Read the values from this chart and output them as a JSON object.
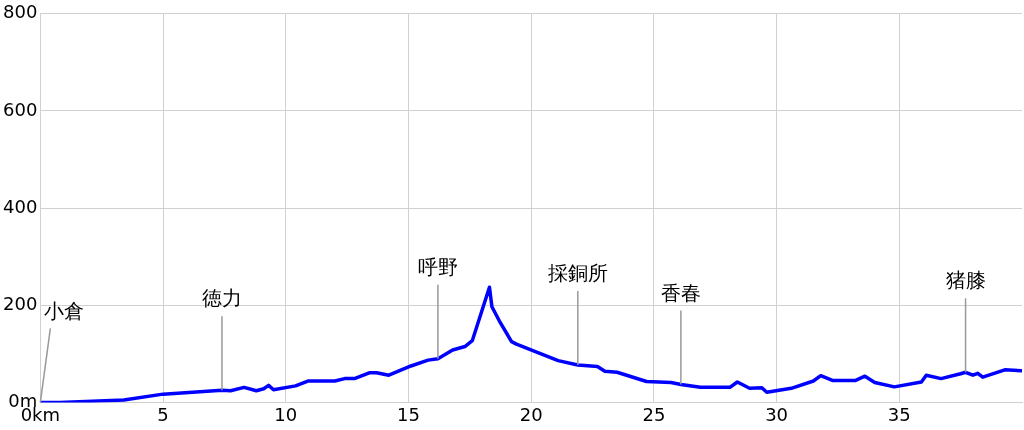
{
  "chart_data": {
    "type": "line",
    "x": [
      0,
      0.8,
      3.4,
      5.0,
      7.4,
      7.75,
      8.3,
      8.8,
      9.1,
      9.3,
      9.5,
      10.4,
      10.9,
      12.0,
      12.4,
      12.8,
      13.4,
      13.7,
      14.2,
      15.1,
      15.8,
      16.2,
      16.8,
      17.3,
      17.6,
      18.3,
      18.4,
      18.7,
      19.2,
      19.4,
      20.3,
      21.1,
      21.9,
      22.7,
      23.0,
      23.5,
      24.7,
      25.7,
      26.1,
      26.9,
      28.1,
      28.4,
      28.9,
      29.4,
      29.6,
      30.6,
      31.5,
      31.8,
      32.3,
      33.2,
      33.6,
      34.0,
      34.8,
      35.9,
      36.1,
      36.7,
      37.5,
      37.7,
      38.0,
      38.2,
      38.4,
      39.3,
      40.0
    ],
    "series": [
      {
        "color": "#0000ff",
        "values": [
          0,
          0,
          5,
          17,
          25,
          24,
          31,
          24,
          28,
          35,
          26,
          34,
          44,
          44,
          49,
          49,
          61,
          61,
          56,
          75,
          87,
          90,
          108,
          115,
          127,
          237,
          197,
          168,
          125,
          120,
          102,
          86,
          77,
          74,
          64,
          62,
          43,
          41,
          37,
          31,
          31,
          42,
          29,
          30,
          21,
          29,
          44,
          55,
          45,
          45,
          54,
          41,
          32,
          42,
          56,
          49,
          59,
          62,
          56,
          60,
          52,
          67,
          65
        ]
      }
    ],
    "xlim": [
      0,
      40
    ],
    "xticks": [
      {
        "value": 0,
        "label": "0km"
      },
      5,
      10,
      15,
      20,
      25,
      30,
      35
    ],
    "ylim": [
      0,
      800
    ],
    "yticks": [
      {
        "value": 0,
        "label": "0m"
      },
      200,
      400,
      600,
      800
    ],
    "grid": true,
    "legend": false,
    "marker": "none",
    "line_style": "solid",
    "annotations": [
      {
        "text": "小倉",
        "x": 0,
        "y": 0
      },
      {
        "text": "徳力",
        "x": 7.4,
        "y": 25
      },
      {
        "text": "呼野",
        "x": 16.2,
        "y": 90
      },
      {
        "text": "採銅所",
        "x": 21.9,
        "y": 77
      },
      {
        "text": "香春",
        "x": 26.1,
        "y": 37
      },
      {
        "text": "猪膝",
        "x": 37.7,
        "y": 62
      }
    ]
  }
}
